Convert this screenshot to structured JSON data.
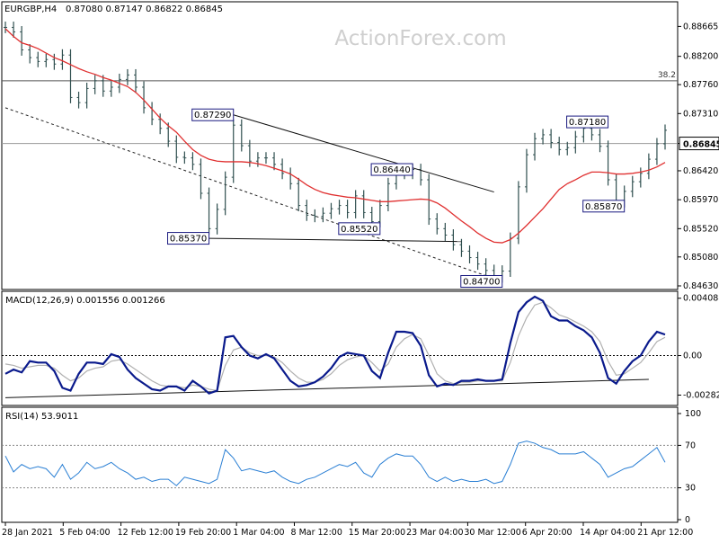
{
  "header": {
    "symbol": "EURGBP,H4",
    "ohlc": "0.87080 0.87147 0.86822 0.86845"
  },
  "watermark": "ActionForex.com",
  "chart_data": [
    {
      "type": "line",
      "panel": "price",
      "ylim": [
        0.8463,
        0.8902
      ],
      "y_ticks": [
        "0.88665",
        "0.88200",
        "0.87760",
        "0.87310",
        "0.86845",
        "0.86420",
        "0.85970",
        "0.85520",
        "0.85080",
        "0.84630"
      ],
      "current_price": "0.86845",
      "fib_level": {
        "label": "38.2",
        "value": 0.8782
      },
      "series": [
        {
          "values": [
            0.8865,
            0.8858,
            0.883,
            0.8818,
            0.8812,
            0.8815,
            0.8808,
            0.8822,
            0.8756,
            0.8748,
            0.877,
            0.8782,
            0.8766,
            0.8772,
            0.8784,
            0.8791,
            0.8772,
            0.874,
            0.8722,
            0.8708,
            0.8688,
            0.8663,
            0.8662,
            0.8652,
            0.8607,
            0.8552,
            0.8582,
            0.8632,
            0.8713,
            0.8681,
            0.8657,
            0.8662,
            0.8662,
            0.8652,
            0.8638,
            0.8622,
            0.8588,
            0.8573,
            0.8571,
            0.8576,
            0.8583,
            0.8588,
            0.8577,
            0.8603,
            0.8577,
            0.8563,
            0.8588,
            0.8622,
            0.8641,
            0.8638,
            0.8644,
            0.8628,
            0.8567,
            0.8552,
            0.8542,
            0.8527,
            0.8517,
            0.8507,
            0.8497,
            0.8487,
            0.8477,
            0.8486,
            0.8537,
            0.8617,
            0.8667,
            0.8692,
            0.8698,
            0.8686,
            0.8675,
            0.8678,
            0.8695,
            0.8708,
            0.8698,
            0.868,
            0.8628,
            0.8594,
            0.861,
            0.8625,
            0.8638,
            0.866,
            0.8684,
            0.8705
          ]
        },
        {
          "name": "",
          "values": [
            0.8863,
            0.8851,
            0.8841,
            0.8837,
            0.8832,
            0.8825,
            0.8818,
            0.8813,
            0.8807,
            0.8801,
            0.8796,
            0.8792,
            0.8787,
            0.8783,
            0.8778,
            0.8773,
            0.8764,
            0.8752,
            0.8738,
            0.8724,
            0.8712,
            0.8702,
            0.8688,
            0.8675,
            0.8666,
            0.866,
            0.8657,
            0.8656,
            0.8656,
            0.8656,
            0.8655,
            0.8653,
            0.865,
            0.8646,
            0.8642,
            0.8637,
            0.8629,
            0.862,
            0.8613,
            0.8608,
            0.8605,
            0.8603,
            0.8601,
            0.86,
            0.8598,
            0.8596,
            0.8594,
            0.8594,
            0.8595,
            0.8596,
            0.8597,
            0.8598,
            0.8597,
            0.8592,
            0.8584,
            0.8574,
            0.8564,
            0.8555,
            0.8545,
            0.8537,
            0.8531,
            0.853,
            0.8535,
            0.8545,
            0.8557,
            0.857,
            0.8583,
            0.8598,
            0.8613,
            0.8622,
            0.8628,
            0.8635,
            0.864,
            0.864,
            0.8639,
            0.8637,
            0.8637,
            0.8638,
            0.864,
            0.8643,
            0.8648,
            0.8655
          ]
        }
      ],
      "annotations": [
        {
          "label": "0.87290",
          "x_index": 28,
          "value": 0.8729,
          "line_start": 0.8729,
          "line_end_index": 60,
          "line_end": 0.8609
        },
        {
          "label": "0.85370",
          "x_index": 25,
          "value": 0.8537,
          "line_start": 0.8537,
          "line_end_index": 56,
          "line_end": 0.8532
        },
        {
          "label": "0.86440",
          "x_index": 50,
          "value": 0.8644
        },
        {
          "label": "0.85520",
          "x_index": 46,
          "value": 0.8552
        },
        {
          "label": "0.84700",
          "x_index": 61,
          "value": 0.847
        },
        {
          "label": "0.87180",
          "x_index": 74,
          "value": 0.8718
        },
        {
          "label": "0.85870",
          "x_index": 76,
          "value": 0.8587
        }
      ],
      "trendline_dashed": {
        "start": 0.874,
        "end_index": 61,
        "end": 0.847
      }
    },
    {
      "type": "line",
      "panel": "macd",
      "title": "MACD(12,26,9) 0.001556 0.001266",
      "ylim": [
        -0.0033,
        0.0042
      ],
      "y_ticks": [
        "0.004088",
        "0.00",
        "-0.00282"
      ],
      "series": [
        {
          "values": [
            -0.0013,
            -0.001,
            -0.0012,
            -0.0004,
            -0.0005,
            -0.0005,
            -0.0011,
            -0.0023,
            -0.0025,
            -0.0013,
            -0.0005,
            -0.0005,
            -0.0006,
            0.0001,
            -0.0001,
            -0.001,
            -0.0016,
            -0.002,
            -0.0024,
            -0.0025,
            -0.0022,
            -0.0022,
            -0.0025,
            -0.0018,
            -0.0022,
            -0.0027,
            -0.0025,
            0.0013,
            0.0014,
            0.0006,
            -0.0,
            -0.0002,
            0.0001,
            -0.0002,
            -0.001,
            -0.0018,
            -0.0022,
            -0.0021,
            -0.0019,
            -0.0015,
            -0.0009,
            -0.0001,
            0.0002,
            0.0001,
            -0.0,
            -0.0011,
            -0.0016,
            0.0002,
            0.0017,
            0.0017,
            0.0016,
            0.0007,
            -0.0014,
            -0.0022,
            -0.002,
            -0.0021,
            -0.0018,
            -0.0018,
            -0.0017,
            -0.0018,
            -0.0018,
            -0.0017,
            0.0009,
            0.0031,
            0.0038,
            0.0042,
            0.0039,
            0.0028,
            0.0025,
            0.0025,
            0.0021,
            0.0018,
            0.0013,
            0.0002,
            -0.0016,
            -0.002,
            -0.0011,
            -0.0004,
            0.0,
            0.001,
            0.0017,
            0.0015
          ]
        },
        {
          "values": [
            -0.0006,
            -0.0007,
            -0.0009,
            -0.0008,
            -0.0007,
            -0.0007,
            -0.0009,
            -0.0014,
            -0.0018,
            -0.0016,
            -0.0011,
            -0.0009,
            -0.0008,
            -0.0004,
            -0.0003,
            -0.0006,
            -0.001,
            -0.0014,
            -0.0018,
            -0.0021,
            -0.0022,
            -0.0022,
            -0.0023,
            -0.0021,
            -0.0022,
            -0.0024,
            -0.0025,
            -0.0007,
            0.0004,
            0.0006,
            0.0002,
            0.0,
            0.0,
            -0.0001,
            -0.0005,
            -0.0011,
            -0.0016,
            -0.0019,
            -0.0019,
            -0.0017,
            -0.0013,
            -0.0007,
            -0.0003,
            -0.0001,
            -0.0,
            -0.0005,
            -0.0011,
            -0.0006,
            0.0006,
            0.0012,
            0.0015,
            0.0012,
            -0.0,
            -0.0013,
            -0.0018,
            -0.002,
            -0.0019,
            -0.0019,
            -0.0018,
            -0.0018,
            -0.0018,
            -0.0018,
            -0.0005,
            0.0014,
            0.0027,
            0.0036,
            0.0038,
            0.0034,
            0.0029,
            0.0027,
            0.0024,
            0.0021,
            0.0017,
            0.001,
            -0.0004,
            -0.0014,
            -0.0013,
            -0.0009,
            -0.0005,
            0.0002,
            0.001,
            0.0013
          ]
        }
      ],
      "trendline": {
        "start": -0.003,
        "end_index": 79,
        "end": -0.0017
      }
    },
    {
      "type": "line",
      "panel": "rsi",
      "title": "RSI(14) 53.9011",
      "ylim": [
        0,
        100
      ],
      "y_ticks": [
        "100",
        "70",
        "30",
        "0"
      ],
      "levels": [
        70,
        30
      ],
      "series": [
        {
          "values": [
            60,
            45,
            52,
            48,
            50,
            48,
            40,
            52,
            38,
            44,
            54,
            48,
            50,
            54,
            48,
            44,
            38,
            40,
            36,
            38,
            38,
            32,
            40,
            38,
            36,
            34,
            38,
            66,
            58,
            46,
            48,
            46,
            44,
            46,
            40,
            36,
            34,
            38,
            40,
            44,
            48,
            52,
            50,
            54,
            44,
            40,
            52,
            58,
            62,
            60,
            60,
            52,
            40,
            36,
            40,
            36,
            38,
            36,
            36,
            38,
            34,
            36,
            52,
            72,
            74,
            72,
            68,
            66,
            62,
            62,
            62,
            64,
            58,
            52,
            40,
            44,
            48,
            50,
            56,
            62,
            68,
            54
          ]
        }
      ]
    }
  ],
  "x_axis": {
    "labels": [
      "28 Jan 2021",
      "5 Feb 04:00",
      "12 Feb 12:00",
      "19 Feb 20:00",
      "1 Mar 04:00",
      "8 Mar 12:00",
      "15 Mar 20:00",
      "23 Mar 04:00",
      "30 Mar 12:00",
      "6 Apr 20:00",
      "14 Apr 04:00",
      "21 Apr 12:00"
    ]
  },
  "colors": {
    "background": "#ffffff",
    "candles": "#2f4f4f",
    "moving_average": "#e03030",
    "macd_line": "#0a1a8c",
    "signal_line": "#b0b0b0",
    "rsi_line": "#2a7fd4",
    "annotation_box": "#1a1a80",
    "grid_line": "#000000",
    "watermark": "#cfcfcf"
  }
}
